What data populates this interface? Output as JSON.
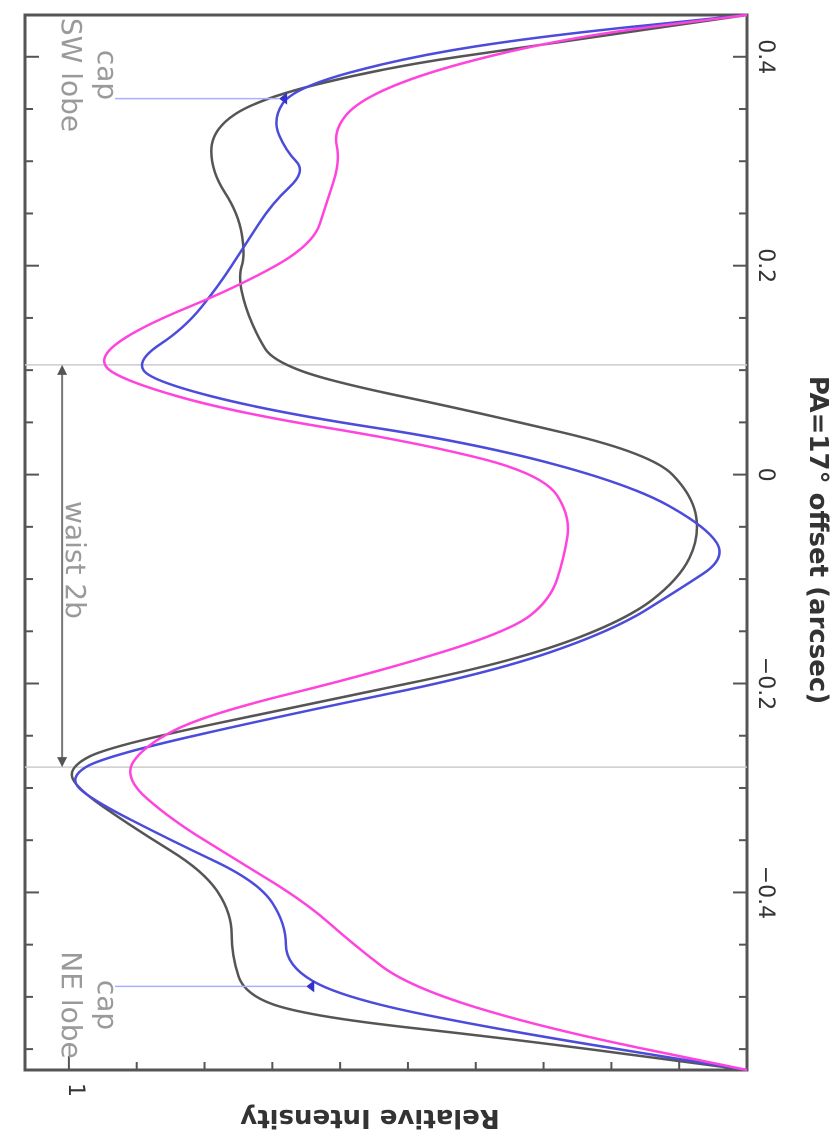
{
  "chart_data": {
    "type": "line",
    "xlabel": "PA=17° offset (arcsec)",
    "ylabel": "Relative Intensity",
    "xlim": [
      -0.57,
      0.44
    ],
    "ylim": [
      0,
      1.05
    ],
    "x_ticks": [
      -0.4,
      -0.2,
      0,
      0.2,
      0.4
    ],
    "x_tick_labels": [
      "−0.4",
      "−0.2",
      "0",
      "0.2",
      "0.4"
    ],
    "y_ticks": [
      1
    ],
    "y_tick_labels": [
      "1"
    ],
    "grid": false,
    "legend": "none",
    "reference_lines_x": [
      -0.28,
      0.105
    ],
    "series": [
      {
        "color": "#555555",
        "points": [
          [
            -0.57,
            0.0
          ],
          [
            -0.54,
            0.35
          ],
          [
            -0.52,
            0.63
          ],
          [
            -0.5,
            0.74
          ],
          [
            -0.46,
            0.76
          ],
          [
            -0.42,
            0.76
          ],
          [
            -0.38,
            0.8
          ],
          [
            -0.34,
            0.9
          ],
          [
            -0.3,
            0.99
          ],
          [
            -0.28,
            1.0
          ],
          [
            -0.26,
            0.94
          ],
          [
            -0.22,
            0.65
          ],
          [
            -0.18,
            0.35
          ],
          [
            -0.14,
            0.18
          ],
          [
            -0.1,
            0.1
          ],
          [
            -0.06,
            0.07
          ],
          [
            -0.02,
            0.08
          ],
          [
            0.02,
            0.14
          ],
          [
            0.06,
            0.4
          ],
          [
            0.09,
            0.62
          ],
          [
            0.11,
            0.7
          ],
          [
            0.13,
            0.72
          ],
          [
            0.16,
            0.74
          ],
          [
            0.19,
            0.75
          ],
          [
            0.21,
            0.74
          ],
          [
            0.25,
            0.75
          ],
          [
            0.29,
            0.79
          ],
          [
            0.33,
            0.79
          ],
          [
            0.36,
            0.72
          ],
          [
            0.39,
            0.53
          ],
          [
            0.41,
            0.32
          ],
          [
            0.44,
            0.0
          ]
        ]
      },
      {
        "color": "#4b4bdc",
        "points": [
          [
            -0.57,
            0.0
          ],
          [
            -0.53,
            0.38
          ],
          [
            -0.5,
            0.6
          ],
          [
            -0.47,
            0.68
          ],
          [
            -0.43,
            0.68
          ],
          [
            -0.39,
            0.72
          ],
          [
            -0.35,
            0.85
          ],
          [
            -0.31,
            0.97
          ],
          [
            -0.29,
            1.0
          ],
          [
            -0.27,
            0.95
          ],
          [
            -0.23,
            0.68
          ],
          [
            -0.19,
            0.38
          ],
          [
            -0.15,
            0.2
          ],
          [
            -0.11,
            0.1
          ],
          [
            -0.08,
            0.03
          ],
          [
            -0.05,
            0.06
          ],
          [
            -0.01,
            0.17
          ],
          [
            0.03,
            0.4
          ],
          [
            0.06,
            0.7
          ],
          [
            0.09,
            0.88
          ],
          [
            0.11,
            0.9
          ],
          [
            0.14,
            0.83
          ],
          [
            0.18,
            0.78
          ],
          [
            0.22,
            0.74
          ],
          [
            0.26,
            0.7
          ],
          [
            0.29,
            0.65
          ],
          [
            0.31,
            0.68
          ],
          [
            0.34,
            0.7
          ],
          [
            0.37,
            0.67
          ],
          [
            0.4,
            0.5
          ],
          [
            0.42,
            0.3
          ],
          [
            0.44,
            0.0
          ]
        ]
      },
      {
        "color": "#ff44dd",
        "points": [
          [
            -0.57,
            0.0
          ],
          [
            -0.53,
            0.3
          ],
          [
            -0.49,
            0.5
          ],
          [
            -0.45,
            0.58
          ],
          [
            -0.41,
            0.65
          ],
          [
            -0.37,
            0.75
          ],
          [
            -0.33,
            0.85
          ],
          [
            -0.29,
            0.92
          ],
          [
            -0.26,
            0.89
          ],
          [
            -0.23,
            0.8
          ],
          [
            -0.19,
            0.55
          ],
          [
            -0.15,
            0.35
          ],
          [
            -0.12,
            0.29
          ],
          [
            -0.08,
            0.27
          ],
          [
            -0.04,
            0.26
          ],
          [
            0.0,
            0.3
          ],
          [
            0.03,
            0.48
          ],
          [
            0.06,
            0.76
          ],
          [
            0.09,
            0.92
          ],
          [
            0.11,
            0.96
          ],
          [
            0.14,
            0.9
          ],
          [
            0.18,
            0.75
          ],
          [
            0.22,
            0.64
          ],
          [
            0.26,
            0.62
          ],
          [
            0.3,
            0.6
          ],
          [
            0.33,
            0.61
          ],
          [
            0.36,
            0.57
          ],
          [
            0.39,
            0.45
          ],
          [
            0.42,
            0.25
          ],
          [
            0.44,
            0.0
          ]
        ]
      }
    ],
    "annotations": {
      "ne_lobe": "NE lobe",
      "ne_cap": "cap",
      "sw_lobe": "SW lobe",
      "sw_cap": "cap",
      "waist": "waist 2b",
      "ne_cap_marker": [
        -0.49,
        0.65
      ],
      "sw_cap_marker": [
        0.36,
        0.69
      ],
      "waist_arrow": [
        -0.28,
        0.105
      ],
      "waist_arrow_y": 1.01
    }
  }
}
